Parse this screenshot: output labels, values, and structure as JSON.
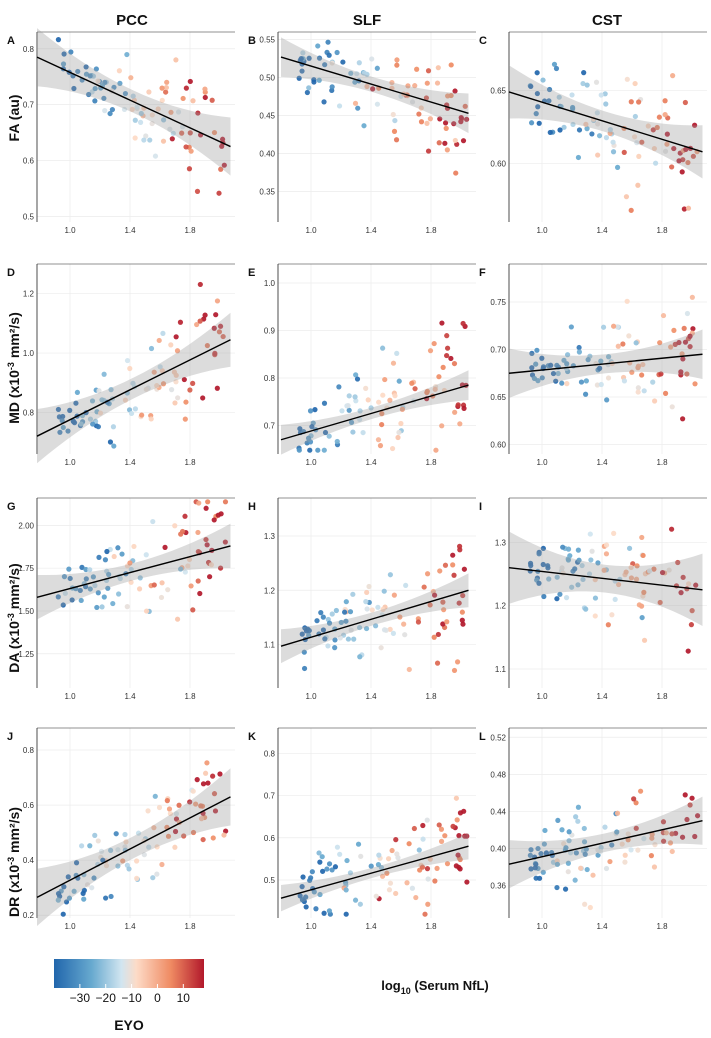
{
  "chart_data": {
    "type": "scatter",
    "column_titles": [
      "PCC",
      "SLF",
      "CST"
    ],
    "row_ylabels": [
      {
        "main": "FA (au)",
        "sup": ""
      },
      {
        "main": "MD (x10",
        "sup": "-3",
        "tail": " mm²/s)"
      },
      {
        "main": "DA (x10",
        "sup": "-3",
        "tail": " mm²/s)"
      },
      {
        "main": "DR (x10",
        "sup": "-3",
        "tail": " mm²/s)"
      }
    ],
    "xlabel": {
      "pre": "log",
      "sub": "10",
      "post": " (Serum NfL)"
    },
    "xlim": [
      0.78,
      2.1
    ],
    "xticks": [
      "1.0",
      "1.4",
      "1.8"
    ],
    "xtick_values": [
      1.0,
      1.4,
      1.8
    ],
    "legend": {
      "title": "EYO",
      "ticks": [
        "−30",
        "−20",
        "−10",
        "0",
        "10"
      ],
      "tick_values": [
        -30,
        -20,
        -10,
        0,
        10
      ],
      "range": [
        -40,
        18
      ]
    },
    "panels": [
      {
        "letter": "A",
        "ylim": [
          0.49,
          0.83
        ],
        "yticks": [
          "0.5",
          "0.6",
          "0.7",
          "0.8"
        ],
        "ytick_values": [
          0.5,
          0.6,
          0.7,
          0.8
        ],
        "fit": {
          "start": [
            0.78,
            0.785
          ],
          "end": [
            2.07,
            0.625
          ]
        },
        "ci": 0.02
      },
      {
        "letter": "B",
        "ylim": [
          0.31,
          0.56
        ],
        "yticks": [
          "0.35",
          "0.40",
          "0.45",
          "0.50",
          "0.55"
        ],
        "ytick_values": [
          0.35,
          0.4,
          0.45,
          0.5,
          0.55
        ],
        "fit": {
          "start": [
            0.8,
            0.527
          ],
          "end": [
            2.05,
            0.453
          ]
        },
        "ci": 0.01
      },
      {
        "letter": "C",
        "ylim": [
          0.56,
          0.69
        ],
        "yticks": [
          "0.60",
          "0.65"
        ],
        "ytick_values": [
          0.6,
          0.65
        ],
        "fit": {
          "start": [
            0.78,
            0.649
          ],
          "end": [
            2.07,
            0.608
          ]
        },
        "ci": 0.007
      },
      {
        "letter": "D",
        "ylim": [
          0.66,
          1.3
        ],
        "yticks": [
          "0.8",
          "1.0",
          "1.2"
        ],
        "ytick_values": [
          0.8,
          1.0,
          1.2
        ],
        "fit": {
          "start": [
            0.78,
            0.72
          ],
          "end": [
            2.07,
            1.045
          ]
        },
        "ci": 0.035
      },
      {
        "letter": "E",
        "ylim": [
          0.64,
          1.04
        ],
        "yticks": [
          "0.7",
          "0.8",
          "0.9",
          "1.0"
        ],
        "ytick_values": [
          0.7,
          0.8,
          0.9,
          1.0
        ],
        "fit": {
          "start": [
            0.8,
            0.67
          ],
          "end": [
            2.05,
            0.785
          ]
        },
        "ci": 0.012
      },
      {
        "letter": "F",
        "ylim": [
          0.59,
          0.79
        ],
        "yticks": [
          "0.60",
          "0.65",
          "0.70",
          "0.75"
        ],
        "ytick_values": [
          0.6,
          0.65,
          0.7,
          0.75
        ],
        "fit": {
          "start": [
            0.78,
            0.675
          ],
          "end": [
            2.07,
            0.695
          ]
        },
        "ci": 0.01
      },
      {
        "letter": "G",
        "ylim": [
          1.05,
          2.16
        ],
        "yticks": [
          "1.25",
          "1.50",
          "1.75",
          "2.00"
        ],
        "ytick_values": [
          1.25,
          1.5,
          1.75,
          2.0
        ],
        "fit": {
          "start": [
            0.78,
            1.58
          ],
          "end": [
            2.07,
            1.88
          ]
        },
        "ci": 0.05
      },
      {
        "letter": "H",
        "ylim": [
          1.02,
          1.37
        ],
        "yticks": [
          "1.1",
          "1.2",
          "1.3"
        ],
        "ytick_values": [
          1.1,
          1.2,
          1.3
        ],
        "fit": {
          "start": [
            0.8,
            1.097
          ],
          "end": [
            2.05,
            1.2
          ]
        },
        "ci": 0.012
      },
      {
        "letter": "I",
        "ylim": [
          1.07,
          1.37
        ],
        "yticks": [
          "1.1",
          "1.2",
          "1.3"
        ],
        "ytick_values": [
          1.1,
          1.2,
          1.3
        ],
        "fit": {
          "start": [
            0.78,
            1.26
          ],
          "end": [
            2.07,
            1.225
          ]
        },
        "ci": 0.022
      },
      {
        "letter": "J",
        "ylim": [
          0.19,
          0.88
        ],
        "yticks": [
          "0.2",
          "0.4",
          "0.6",
          "0.8"
        ],
        "ytick_values": [
          0.2,
          0.4,
          0.6,
          0.8
        ],
        "fit": {
          "start": [
            0.78,
            0.265
          ],
          "end": [
            2.07,
            0.63
          ]
        },
        "ci": 0.04
      },
      {
        "letter": "K",
        "ylim": [
          0.41,
          0.86
        ],
        "yticks": [
          "0.5",
          "0.6",
          "0.7",
          "0.8"
        ],
        "ytick_values": [
          0.5,
          0.6,
          0.7,
          0.8
        ],
        "fit": {
          "start": [
            0.8,
            0.457
          ],
          "end": [
            2.05,
            0.58
          ]
        },
        "ci": 0.012
      },
      {
        "letter": "L",
        "ylim": [
          0.325,
          0.53
        ],
        "yticks": [
          "0.36",
          "0.40",
          "0.44",
          "0.48",
          "0.52"
        ],
        "ytick_values": [
          0.36,
          0.4,
          0.44,
          0.48,
          0.52
        ],
        "fit": {
          "start": [
            0.78,
            0.383
          ],
          "end": [
            2.07,
            0.43
          ]
        },
        "ci": 0.01
      }
    ]
  }
}
